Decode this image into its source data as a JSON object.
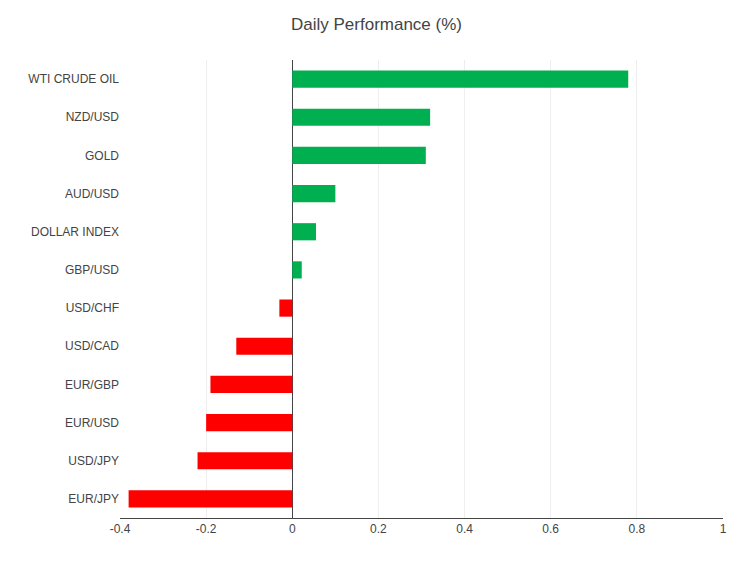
{
  "chart_data": {
    "type": "bar",
    "orientation": "horizontal",
    "title": "Daily Performance (%)",
    "categories": [
      "WTI CRUDE OIL",
      "NZD/USD",
      "GOLD",
      "AUD/USD",
      "DOLLAR INDEX",
      "GBP/USD",
      "USD/CHF",
      "USD/CAD",
      "EUR/GBP",
      "EUR/USD",
      "USD/JPY",
      "EUR/JPY"
    ],
    "values": [
      0.78,
      0.32,
      0.31,
      0.1,
      0.055,
      0.022,
      -0.03,
      -0.13,
      -0.19,
      -0.2,
      -0.22,
      -0.38
    ],
    "colors": [
      "#00b050",
      "#00b050",
      "#00b050",
      "#00b050",
      "#00b050",
      "#00b050",
      "#ff0000",
      "#ff0000",
      "#ff0000",
      "#ff0000",
      "#ff0000",
      "#ff0000"
    ],
    "xlim": [
      -0.4,
      1.0
    ],
    "xticks": [
      -0.4,
      -0.2,
      0,
      0.2,
      0.4,
      0.6,
      0.8,
      1
    ],
    "grid": true
  }
}
